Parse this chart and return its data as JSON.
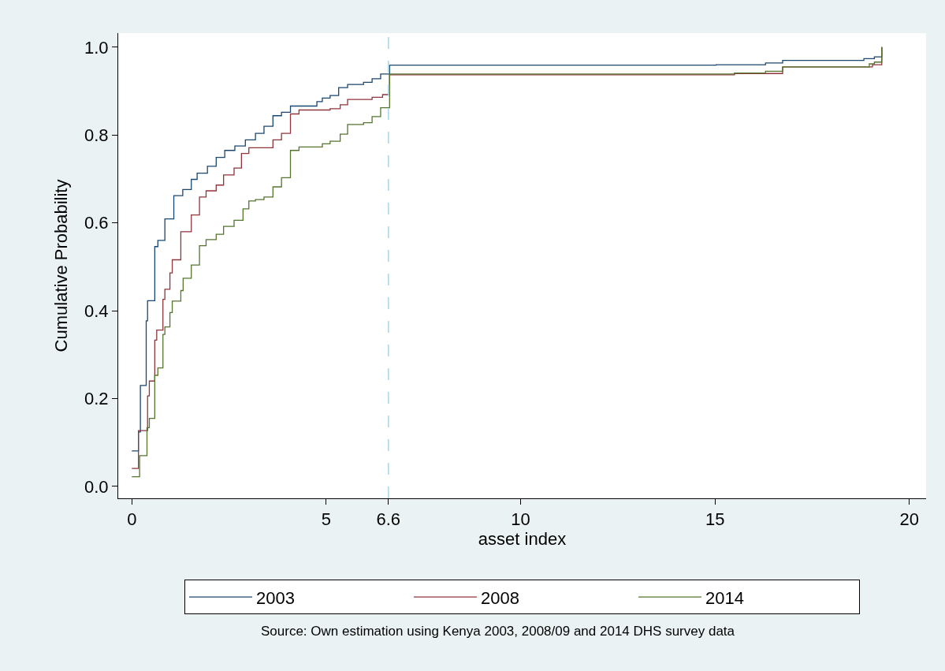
{
  "chart_data": {
    "type": "step",
    "xlabel": "asset index",
    "ylabel": "Cumulative Probability",
    "xlim": [
      -0.35,
      20.43
    ],
    "ylim": [
      -0.027,
      1.032
    ],
    "xticks": [
      0,
      5,
      6.6,
      10,
      15,
      20
    ],
    "yticks": [
      {
        "value": 0,
        "label": "0.0"
      },
      {
        "value": 0.2,
        "label": "0.2"
      },
      {
        "value": 0.4,
        "label": "0.4"
      },
      {
        "value": 0.6,
        "label": "0.6"
      },
      {
        "value": 0.8,
        "label": "0.8"
      },
      {
        "value": 1,
        "label": "1.0"
      }
    ],
    "legend": "bottom",
    "marker": "none",
    "line_style": "solid",
    "ref_lines": [
      {
        "axis": "x",
        "value": 6.6,
        "color": "#a9d6e5",
        "line_style": "dashed"
      }
    ],
    "annotations": [
      "Source: Own estimation using Kenya 2003, 2008/09 and 2014 DHS survey data"
    ],
    "series": [
      {
        "name": "2003",
        "color": "#1a476f",
        "x": [
          0,
          0.17,
          0.22,
          0.37,
          0.405,
          0.59,
          0.67,
          0.85,
          1.08,
          1.31,
          1.53,
          1.68,
          1.945,
          2.17,
          2.39,
          2.65,
          2.92,
          3.18,
          3.4,
          3.63,
          3.85,
          4.08,
          4.76,
          4.9,
          5.1,
          5.32,
          5.55,
          5.96,
          6.18,
          6.4,
          6.63,
          15.03,
          16.3,
          16.74,
          18.83,
          19.1,
          19.29
        ],
        "values": [
          0.081,
          0.124,
          0.23,
          0.377,
          0.423,
          0.546,
          0.56,
          0.609,
          0.662,
          0.676,
          0.699,
          0.713,
          0.729,
          0.749,
          0.765,
          0.775,
          0.789,
          0.804,
          0.82,
          0.844,
          0.852,
          0.866,
          0.876,
          0.884,
          0.89,
          0.908,
          0.915,
          0.92,
          0.928,
          0.939,
          0.959,
          0.96,
          0.964,
          0.97,
          0.974,
          0.978,
          1.0
        ]
      },
      {
        "name": "2008",
        "color": "#90353b",
        "x": [
          0,
          0.17,
          0.405,
          0.45,
          0.59,
          0.64,
          0.8,
          0.85,
          0.98,
          1.04,
          1.26,
          1.53,
          1.74,
          1.91,
          2.17,
          2.36,
          2.63,
          2.82,
          3.01,
          3.63,
          3.85,
          4.08,
          4.3,
          5.1,
          5.36,
          5.55,
          6.18,
          6.45,
          6.63,
          15.5,
          16.74,
          19.05,
          19.29
        ],
        "values": [
          0.041,
          0.127,
          0.206,
          0.24,
          0.333,
          0.356,
          0.426,
          0.449,
          0.486,
          0.516,
          0.58,
          0.618,
          0.659,
          0.673,
          0.686,
          0.709,
          0.725,
          0.758,
          0.771,
          0.789,
          0.804,
          0.848,
          0.857,
          0.86,
          0.869,
          0.881,
          0.886,
          0.892,
          0.937,
          0.94,
          0.955,
          0.96,
          1.0
        ]
      },
      {
        "name": "2014",
        "color": "#55752f",
        "x": [
          0,
          0.2,
          0.39,
          0.45,
          0.59,
          0.67,
          0.8,
          0.85,
          0.98,
          1.04,
          1.26,
          1.32,
          1.53,
          1.74,
          1.91,
          2.17,
          2.36,
          2.63,
          2.86,
          3.01,
          3.18,
          3.4,
          3.63,
          3.85,
          4.08,
          4.3,
          4.9,
          5.1,
          5.36,
          5.55,
          5.96,
          6.18,
          6.4,
          6.63,
          15.5,
          16.3,
          16.74,
          18.97,
          19.1,
          19.29
        ],
        "values": [
          0.022,
          0.07,
          0.134,
          0.155,
          0.253,
          0.27,
          0.346,
          0.363,
          0.396,
          0.422,
          0.446,
          0.474,
          0.504,
          0.548,
          0.562,
          0.574,
          0.592,
          0.606,
          0.632,
          0.65,
          0.653,
          0.659,
          0.682,
          0.703,
          0.765,
          0.773,
          0.78,
          0.786,
          0.802,
          0.824,
          0.828,
          0.842,
          0.862,
          0.939,
          0.941,
          0.945,
          0.955,
          0.962,
          0.966,
          1.0
        ]
      }
    ]
  }
}
